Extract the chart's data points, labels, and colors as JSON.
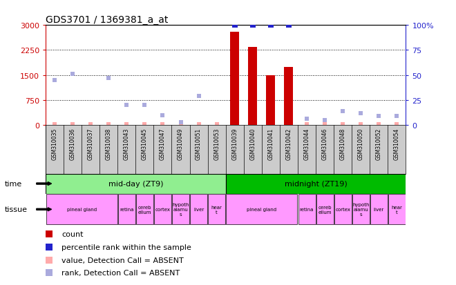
{
  "title": "GDS3701 / 1369381_a_at",
  "samples": [
    "GSM310035",
    "GSM310036",
    "GSM310037",
    "GSM310038",
    "GSM310043",
    "GSM310045",
    "GSM310047",
    "GSM310049",
    "GSM310051",
    "GSM310053",
    "GSM310039",
    "GSM310040",
    "GSM310041",
    "GSM310042",
    "GSM310044",
    "GSM310046",
    "GSM310048",
    "GSM310050",
    "GSM310052",
    "GSM310054"
  ],
  "count_values": [
    0,
    0,
    0,
    0,
    0,
    0,
    0,
    0,
    0,
    0,
    2800,
    2350,
    1500,
    1750,
    0,
    0,
    0,
    0,
    0,
    0
  ],
  "count_absent": [
    true,
    true,
    true,
    true,
    true,
    true,
    true,
    true,
    true,
    true,
    false,
    false,
    false,
    false,
    true,
    true,
    true,
    true,
    true,
    true
  ],
  "rank_values": [
    null,
    null,
    null,
    null,
    null,
    null,
    null,
    null,
    null,
    null,
    100,
    100,
    100,
    100,
    null,
    null,
    null,
    null,
    null,
    null
  ],
  "rank_absent": [
    45,
    51,
    null,
    47,
    20,
    20,
    10,
    3,
    29,
    null,
    null,
    null,
    null,
    null,
    6,
    5,
    14,
    12,
    9,
    9
  ],
  "left_ylim": [
    0,
    3000
  ],
  "right_ylim": [
    0,
    100
  ],
  "left_yticks": [
    0,
    750,
    1500,
    2250,
    3000
  ],
  "right_yticks": [
    0,
    25,
    50,
    75,
    100
  ],
  "time_groups": [
    {
      "label": "mid-day (ZT9)",
      "start": 0,
      "end": 10,
      "color": "#90EE90"
    },
    {
      "label": "midnight (ZT19)",
      "start": 10,
      "end": 20,
      "color": "#00BB00"
    }
  ],
  "tissue_groups": [
    {
      "label": "pineal gland",
      "start": 0,
      "end": 4
    },
    {
      "label": "retina",
      "start": 4,
      "end": 5
    },
    {
      "label": "cereb\nellum",
      "start": 5,
      "end": 6
    },
    {
      "label": "cortex",
      "start": 6,
      "end": 7
    },
    {
      "label": "hypoth\nalamu\ns",
      "start": 7,
      "end": 8
    },
    {
      "label": "liver",
      "start": 8,
      "end": 9
    },
    {
      "label": "hear\nt",
      "start": 9,
      "end": 10
    },
    {
      "label": "pineal gland",
      "start": 10,
      "end": 14
    },
    {
      "label": "retina",
      "start": 14,
      "end": 15
    },
    {
      "label": "cereb\nellum",
      "start": 15,
      "end": 16
    },
    {
      "label": "cortex",
      "start": 16,
      "end": 17
    },
    {
      "label": "hypoth\nalamu\ns",
      "start": 17,
      "end": 18
    },
    {
      "label": "liver",
      "start": 18,
      "end": 19
    },
    {
      "label": "hear\nt",
      "start": 19,
      "end": 20
    }
  ],
  "tissue_color": "#FF99FF",
  "bar_color": "#CC0000",
  "rank_color": "#2222CC",
  "rank_absent_color": "#AAAADD",
  "count_absent_color": "#FFAAAA",
  "bg_color": "#FFFFFF",
  "left_axis_color": "#CC0000",
  "right_axis_color": "#2222CC",
  "sample_label_bg": "#CCCCCC"
}
